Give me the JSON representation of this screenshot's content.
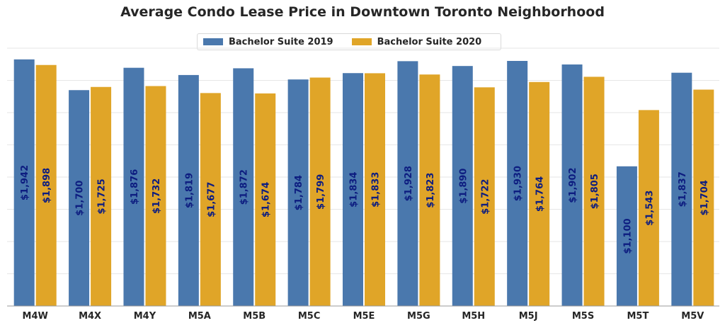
{
  "chart_data": {
    "type": "bar",
    "title": "Average Condo Lease Price in Downtown Toronto Neighborhood",
    "xlabel": "",
    "ylabel": "",
    "ylim": [
      0,
      2000
    ],
    "grid": true,
    "legend_position": "top-center",
    "categories": [
      "M4W",
      "M4X",
      "M4Y",
      "M5A",
      "M5B",
      "M5C",
      "M5E",
      "M5G",
      "M5H",
      "M5J",
      "M5S",
      "M5T",
      "M5V"
    ],
    "series": [
      {
        "name": "Bachelor Suite 2019",
        "color": "#4a78ad",
        "values": [
          1942,
          1700,
          1876,
          1819,
          1872,
          1784,
          1834,
          1928,
          1890,
          1930,
          1902,
          1100,
          1837
        ],
        "labels": [
          "$1,942",
          "$1,700",
          "$1,876",
          "$1,819",
          "$1,872",
          "$1,784",
          "$1,834",
          "$1,928",
          "$1,890",
          "$1,930",
          "$1,902",
          "$1,100",
          "$1,837"
        ]
      },
      {
        "name": "Bachelor Suite 2020",
        "color": "#e0a528",
        "values": [
          1898,
          1725,
          1732,
          1677,
          1674,
          1799,
          1833,
          1823,
          1722,
          1764,
          1805,
          1543,
          1704
        ],
        "labels": [
          "$1,898",
          "$1,725",
          "$1,732",
          "$1,677",
          "$1,674",
          "$1,799",
          "$1,833",
          "$1,823",
          "$1,722",
          "$1,764",
          "$1,805",
          "$1,543",
          "$1,704"
        ]
      }
    ],
    "data_label_color": "#0d1d80"
  }
}
